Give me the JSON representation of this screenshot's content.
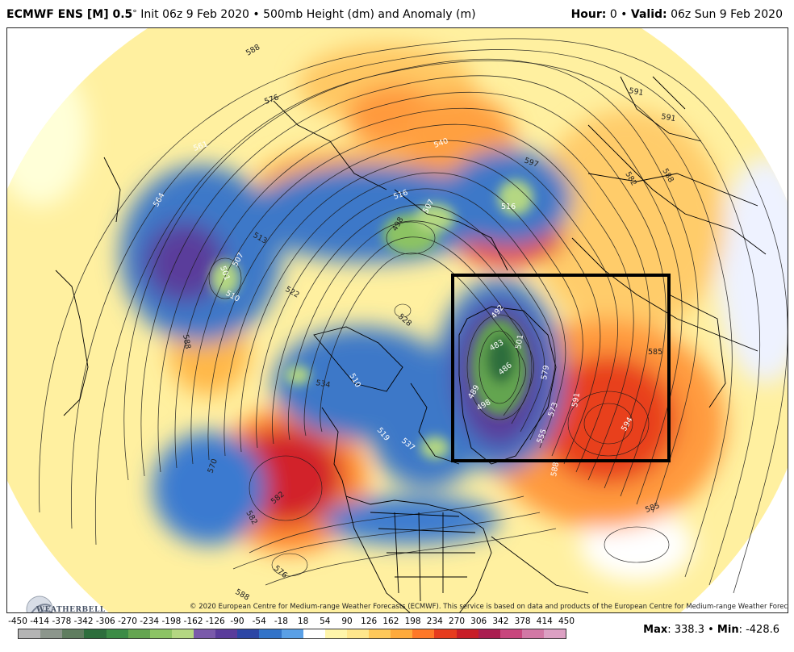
{
  "header": {
    "model": "ECMWF ENS [M] 0.5",
    "degree": "°",
    "init": " Init 06z 9 Feb 2020 • 500mb Height (dm) and Anomaly (m)",
    "hour_label": "Hour:",
    "hour_value": " 0 • ",
    "valid_label": "Valid:",
    "valid_value": " 06z Sun 9 Feb 2020"
  },
  "map": {
    "contour_labels": [
      {
        "text": "588",
        "color": "#222"
      },
      {
        "text": "576",
        "color": "#222"
      },
      {
        "text": "561",
        "color": "#fff"
      },
      {
        "text": "564",
        "color": "#fff"
      },
      {
        "text": "513",
        "color": "#222"
      },
      {
        "text": "510",
        "color": "#fff"
      },
      {
        "text": "507",
        "color": "#fff"
      },
      {
        "text": "501",
        "color": "#fff"
      },
      {
        "text": "522",
        "color": "#222"
      },
      {
        "text": "540",
        "color": "#fff"
      },
      {
        "text": "516",
        "color": "#fff"
      },
      {
        "text": "498",
        "color": "#222"
      },
      {
        "text": "507",
        "color": "#fff"
      },
      {
        "text": "597",
        "color": "#222"
      },
      {
        "text": "516",
        "color": "#fff"
      },
      {
        "text": "591",
        "color": "#222"
      },
      {
        "text": "591",
        "color": "#222"
      },
      {
        "text": "582",
        "color": "#222"
      },
      {
        "text": "588",
        "color": "#222"
      },
      {
        "text": "528",
        "color": "#222"
      },
      {
        "text": "492",
        "color": "#fff"
      },
      {
        "text": "483",
        "color": "#fff"
      },
      {
        "text": "501",
        "color": "#fff"
      },
      {
        "text": "486",
        "color": "#fff"
      },
      {
        "text": "489",
        "color": "#fff"
      },
      {
        "text": "498",
        "color": "#fff"
      },
      {
        "text": "585",
        "color": "#222"
      },
      {
        "text": "579",
        "color": "#fff"
      },
      {
        "text": "591",
        "color": "#fff"
      },
      {
        "text": "594",
        "color": "#fff"
      },
      {
        "text": "573",
        "color": "#fff"
      },
      {
        "text": "588",
        "color": "#fff"
      },
      {
        "text": "510",
        "color": "#fff"
      },
      {
        "text": "534",
        "color": "#222"
      },
      {
        "text": "519",
        "color": "#fff"
      },
      {
        "text": "537",
        "color": "#fff"
      },
      {
        "text": "570",
        "color": "#222"
      },
      {
        "text": "582",
        "color": "#222"
      },
      {
        "text": "582",
        "color": "#222"
      },
      {
        "text": "576",
        "color": "#222"
      },
      {
        "text": "588",
        "color": "#222"
      },
      {
        "text": "585",
        "color": "#222"
      },
      {
        "text": "588",
        "color": "#222"
      },
      {
        "text": "555",
        "color": "#fff"
      }
    ],
    "highlight_box_color": "#000000",
    "logo_text": "WEATHERBELL"
  },
  "copyright": "© 2020 European Centre for Medium-range Weather Forecasts (ECMWF). This service is based on data and products of the European Centre for Medium-range Weather Forecasts (ECMWF).",
  "colorbar": {
    "ticks": [
      "-450",
      "-414",
      "-378",
      "-342",
      "-306",
      "-270",
      "-234",
      "-198",
      "-162",
      "-126",
      "-90",
      "-54",
      "-18",
      "18",
      "54",
      "90",
      "126",
      "162",
      "198",
      "234",
      "270",
      "306",
      "342",
      "378",
      "414",
      "450"
    ],
    "colors": [
      "#b4b4b4",
      "#8c968c",
      "#5f7d5f",
      "#2d6e3c",
      "#3c8c46",
      "#64a550",
      "#8cc364",
      "#b4d782",
      "#7a5aaa",
      "#5a3c9b",
      "#2d46a5",
      "#3273c8",
      "#5aa0e6",
      "#ffffff",
      "#fff5aa",
      "#ffe68c",
      "#ffc85a",
      "#ffaa3c",
      "#ff7828",
      "#e63c1e",
      "#c81e28",
      "#aa1e50",
      "#c8467d",
      "#d278a5",
      "#dca0c3"
    ]
  },
  "maxmin": {
    "max_label": "Max",
    "max_value": ": 338.3 • ",
    "min_label": "Min",
    "min_value": ": -428.6"
  }
}
